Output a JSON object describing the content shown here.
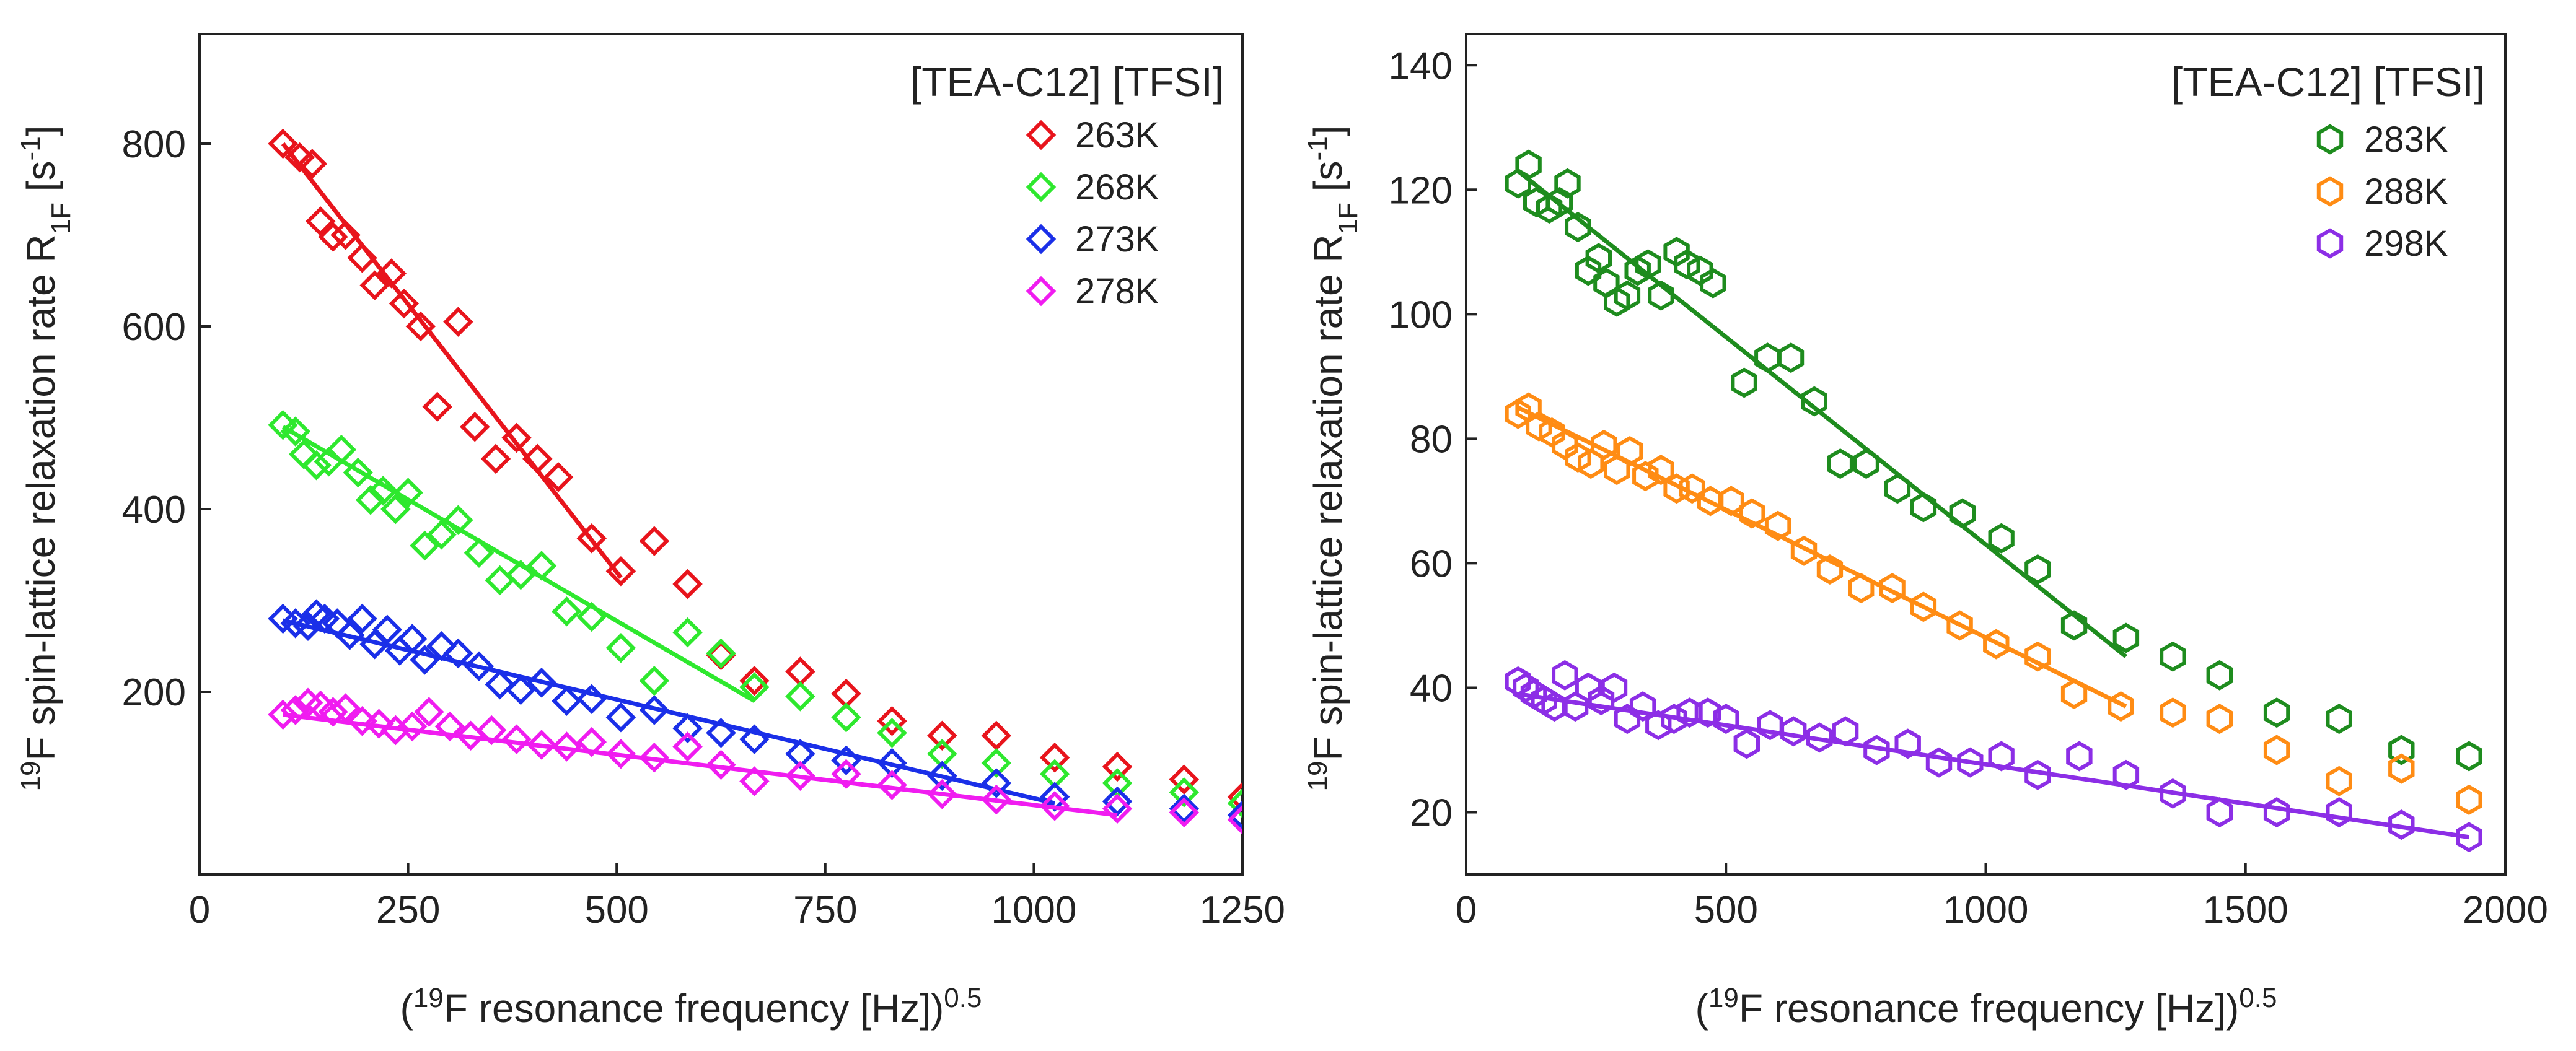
{
  "chart_data": [
    {
      "type": "scatter",
      "title": "[TEA-C12] [TFSI]",
      "xlabel": "(19F resonance frequency [Hz])0.5",
      "xlabel_parts": {
        "open": "(",
        "sup": "19",
        "main": "F resonance frequency [Hz])",
        "exp": "0.5"
      },
      "ylabel": "19F spin-lattice relaxation rate R1F [s-1]",
      "ylabel_parts": {
        "sup": "19",
        "main": "F spin-lattice relaxation rate R",
        "sub": "1F",
        "open": " [s",
        "exp": "-1",
        "close": "]"
      },
      "xlim": [
        0,
        1250
      ],
      "ylim": [
        0,
        920
      ],
      "xticks": [
        0,
        250,
        500,
        750,
        1000,
        1250
      ],
      "yticks": [
        200,
        400,
        600,
        800
      ],
      "marker": "diamond",
      "series": [
        {
          "name": "263K",
          "color": "#e8141c",
          "x": [
            100,
            120,
            135,
            145,
            160,
            175,
            195,
            210,
            230,
            245,
            265,
            285,
            310,
            330,
            355,
            380,
            405,
            430,
            470,
            505,
            545,
            585,
            625,
            665,
            720,
            775,
            830,
            890,
            955,
            1025,
            1100,
            1180,
            1250
          ],
          "y": [
            800,
            785,
            778,
            715,
            698,
            700,
            675,
            645,
            658,
            625,
            600,
            512,
            605,
            490,
            455,
            478,
            455,
            435,
            368,
            332,
            365,
            318,
            240,
            212,
            222,
            198,
            168,
            152,
            152,
            128,
            118,
            104,
            85
          ],
          "fit": {
            "x": [
              100,
              505
            ],
            "y": [
              800,
              325
            ]
          }
        },
        {
          "name": "268K",
          "color": "#2ee82e",
          "x": [
            100,
            115,
            125,
            140,
            155,
            170,
            190,
            205,
            220,
            235,
            250,
            270,
            290,
            310,
            335,
            360,
            385,
            410,
            440,
            470,
            505,
            545,
            585,
            625,
            665,
            720,
            775,
            830,
            890,
            955,
            1025,
            1100,
            1180,
            1250
          ],
          "y": [
            492,
            485,
            460,
            448,
            452,
            465,
            440,
            410,
            420,
            400,
            418,
            360,
            372,
            388,
            352,
            322,
            328,
            338,
            288,
            282,
            248,
            212,
            265,
            242,
            205,
            195,
            172,
            155,
            132,
            122,
            110,
            100,
            90,
            78
          ],
          "fit": {
            "x": [
              100,
              665
            ],
            "y": [
              490,
              190
            ]
          }
        },
        {
          "name": "273K",
          "color": "#1a2fe8",
          "x": [
            100,
            115,
            130,
            140,
            150,
            165,
            180,
            195,
            210,
            225,
            240,
            255,
            270,
            290,
            310,
            335,
            360,
            385,
            410,
            440,
            470,
            505,
            545,
            585,
            625,
            665,
            720,
            775,
            830,
            890,
            955,
            1025,
            1100,
            1180,
            1250
          ],
          "y": [
            280,
            275,
            272,
            285,
            280,
            275,
            262,
            280,
            252,
            268,
            245,
            258,
            235,
            250,
            242,
            228,
            208,
            202,
            210,
            190,
            192,
            172,
            180,
            160,
            155,
            148,
            132,
            125,
            122,
            108,
            100,
            85,
            80,
            72,
            65
          ],
          "fit": {
            "x": [
              100,
              1025
            ],
            "y": [
              278,
              78
            ]
          }
        },
        {
          "name": "278K",
          "color": "#f01cf0",
          "x": [
            100,
            115,
            130,
            145,
            160,
            175,
            195,
            215,
            235,
            255,
            275,
            300,
            325,
            350,
            380,
            410,
            440,
            470,
            505,
            545,
            585,
            625,
            665,
            720,
            775,
            830,
            890,
            955,
            1025,
            1100,
            1180,
            1250
          ],
          "y": [
            175,
            180,
            188,
            185,
            178,
            182,
            168,
            165,
            158,
            162,
            178,
            162,
            152,
            158,
            148,
            142,
            140,
            145,
            132,
            128,
            140,
            120,
            102,
            108,
            110,
            98,
            88,
            82,
            75,
            72,
            68,
            60
          ],
          "fit": {
            "x": [
              100,
              1100
            ],
            "y": [
              175,
              65
            ]
          }
        }
      ]
    },
    {
      "type": "scatter",
      "title": "[TEA-C12] [TFSI]",
      "xlabel": "(19F resonance frequency [Hz])0.5",
      "xlabel_parts": {
        "open": "(",
        "sup": "19",
        "main": "F resonance frequency [Hz])",
        "exp": "0.5"
      },
      "ylabel": "19F spin-lattice relaxation rate R1F [s-1]",
      "ylabel_parts": {
        "sup": "19",
        "main": "F spin-lattice relaxation rate R",
        "sub": "1F",
        "open": " [s",
        "exp": "-1",
        "close": "]"
      },
      "xlim": [
        0,
        2000
      ],
      "ylim": [
        10,
        145
      ],
      "xticks": [
        0,
        500,
        1000,
        1500,
        2000
      ],
      "yticks": [
        20,
        40,
        60,
        80,
        100,
        120,
        140
      ],
      "marker": "hexagon",
      "series": [
        {
          "name": "283K",
          "color": "#1e8c1e",
          "x": [
            100,
            120,
            135,
            160,
            180,
            195,
            215,
            235,
            255,
            270,
            290,
            310,
            330,
            350,
            375,
            405,
            425,
            450,
            475,
            535,
            580,
            625,
            670,
            720,
            770,
            830,
            880,
            955,
            1030,
            1100,
            1170,
            1270,
            1360,
            1450,
            1560,
            1680,
            1800,
            1930
          ],
          "y": [
            121,
            124,
            118,
            117,
            118,
            121,
            114,
            107,
            109,
            105,
            102,
            103,
            107,
            108,
            103,
            110,
            108,
            107,
            105,
            89,
            93,
            93,
            86,
            76,
            76,
            72,
            69,
            68,
            64,
            59,
            50,
            48,
            45,
            42,
            36,
            35,
            30,
            29
          ],
          "fit": {
            "x": [
              100,
              1270
            ],
            "y": [
              123,
              45
            ]
          }
        },
        {
          "name": "288K",
          "color": "#ff8c14",
          "x": [
            100,
            120,
            140,
            165,
            190,
            215,
            240,
            265,
            290,
            315,
            345,
            375,
            405,
            435,
            470,
            510,
            550,
            600,
            650,
            700,
            760,
            820,
            880,
            950,
            1020,
            1100,
            1170,
            1260,
            1360,
            1450,
            1560,
            1680,
            1800,
            1930
          ],
          "y": [
            84,
            85,
            82,
            81,
            79,
            77,
            76,
            79,
            75,
            78,
            74,
            75,
            72,
            72,
            70,
            70,
            68,
            66,
            62,
            59,
            56,
            56,
            53,
            50,
            47,
            45,
            39,
            37,
            36,
            35,
            30,
            25,
            27,
            22
          ],
          "fit": {
            "x": [
              100,
              1270
            ],
            "y": [
              85,
              37
            ]
          }
        },
        {
          "name": "298K",
          "color": "#8c2ee6",
          "x": [
            100,
            115,
            130,
            150,
            170,
            190,
            210,
            235,
            260,
            285,
            310,
            340,
            370,
            400,
            430,
            465,
            500,
            540,
            585,
            630,
            680,
            730,
            790,
            850,
            910,
            970,
            1030,
            1100,
            1180,
            1270,
            1360,
            1450,
            1560,
            1680,
            1800,
            1930
          ],
          "y": [
            41,
            40,
            39,
            38,
            37,
            42,
            37,
            40,
            38,
            40,
            35,
            37,
            34,
            35,
            36,
            36,
            35,
            31,
            34,
            33,
            32,
            33,
            30,
            31,
            28,
            28,
            29,
            26,
            29,
            26,
            23,
            20,
            20,
            20,
            18,
            16
          ],
          "fit": {
            "x": [
              100,
              1930
            ],
            "y": [
              39,
              16
            ]
          }
        }
      ]
    }
  ]
}
